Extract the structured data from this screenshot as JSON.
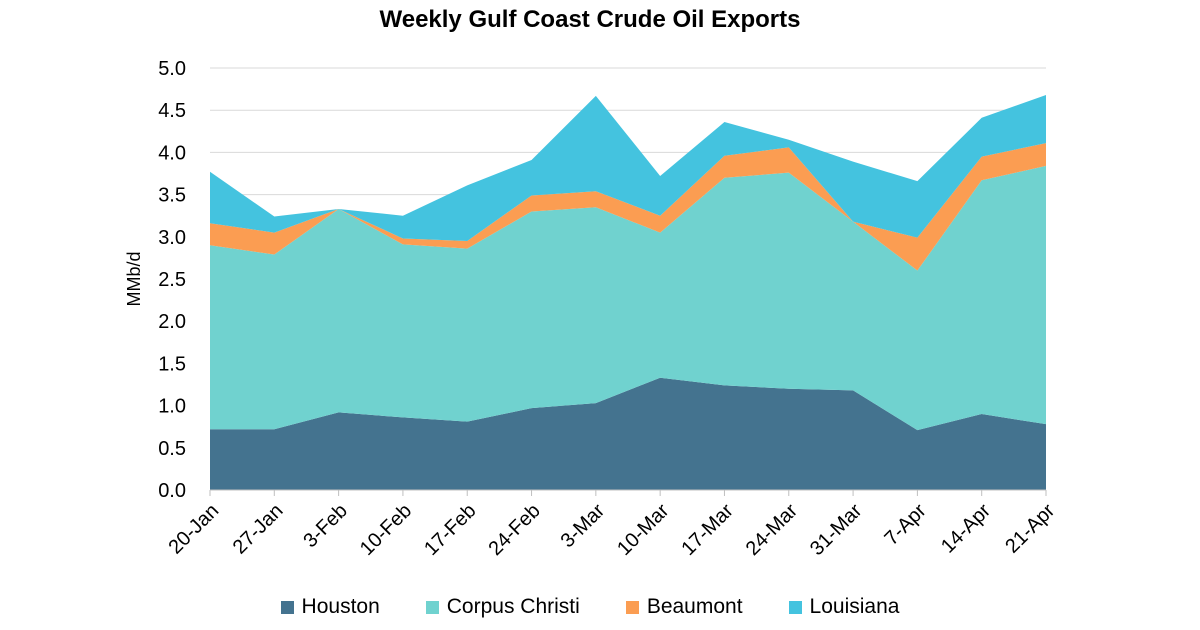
{
  "chart_data": {
    "type": "area",
    "stacked": true,
    "title": "Weekly Gulf Coast Crude Oil Exports",
    "ylabel": "MMb/d",
    "xlabel": "",
    "ylim": [
      0,
      5.0
    ],
    "yticks": [
      "0.0",
      "0.5",
      "1.0",
      "1.5",
      "2.0",
      "2.5",
      "3.0",
      "3.5",
      "4.0",
      "4.5",
      "5.0"
    ],
    "ytick_values": [
      0,
      0.5,
      1.0,
      1.5,
      2.0,
      2.5,
      3.0,
      3.5,
      4.0,
      4.5,
      5.0
    ],
    "grid": true,
    "legend_position": "bottom",
    "categories": [
      "20-Jan",
      "27-Jan",
      "3-Feb",
      "10-Feb",
      "17-Feb",
      "24-Feb",
      "3-Mar",
      "10-Mar",
      "17-Mar",
      "24-Mar",
      "31-Mar",
      "7-Apr",
      "14-Apr",
      "21-Apr"
    ],
    "series": [
      {
        "name": "Houston",
        "color": "#44738f",
        "values": [
          0.72,
          0.72,
          0.92,
          0.86,
          0.81,
          0.97,
          1.03,
          1.33,
          1.24,
          1.2,
          1.18,
          0.71,
          0.9,
          0.78
        ]
      },
      {
        "name": "Corpus Christi",
        "color": "#70d2cf",
        "values": [
          2.18,
          2.07,
          2.41,
          2.05,
          2.05,
          2.33,
          2.32,
          1.72,
          2.46,
          2.56,
          2.0,
          1.89,
          2.77,
          3.06
        ]
      },
      {
        "name": "Beaumont",
        "color": "#fb9d52",
        "values": [
          0.26,
          0.26,
          0.0,
          0.07,
          0.09,
          0.19,
          0.19,
          0.2,
          0.26,
          0.3,
          0.0,
          0.39,
          0.28,
          0.27
        ]
      },
      {
        "name": "Louisiana",
        "color": "#44c3df",
        "values": [
          0.61,
          0.19,
          0.0,
          0.27,
          0.66,
          0.42,
          1.13,
          0.47,
          0.4,
          0.09,
          0.71,
          0.67,
          0.46,
          0.57
        ]
      }
    ]
  }
}
